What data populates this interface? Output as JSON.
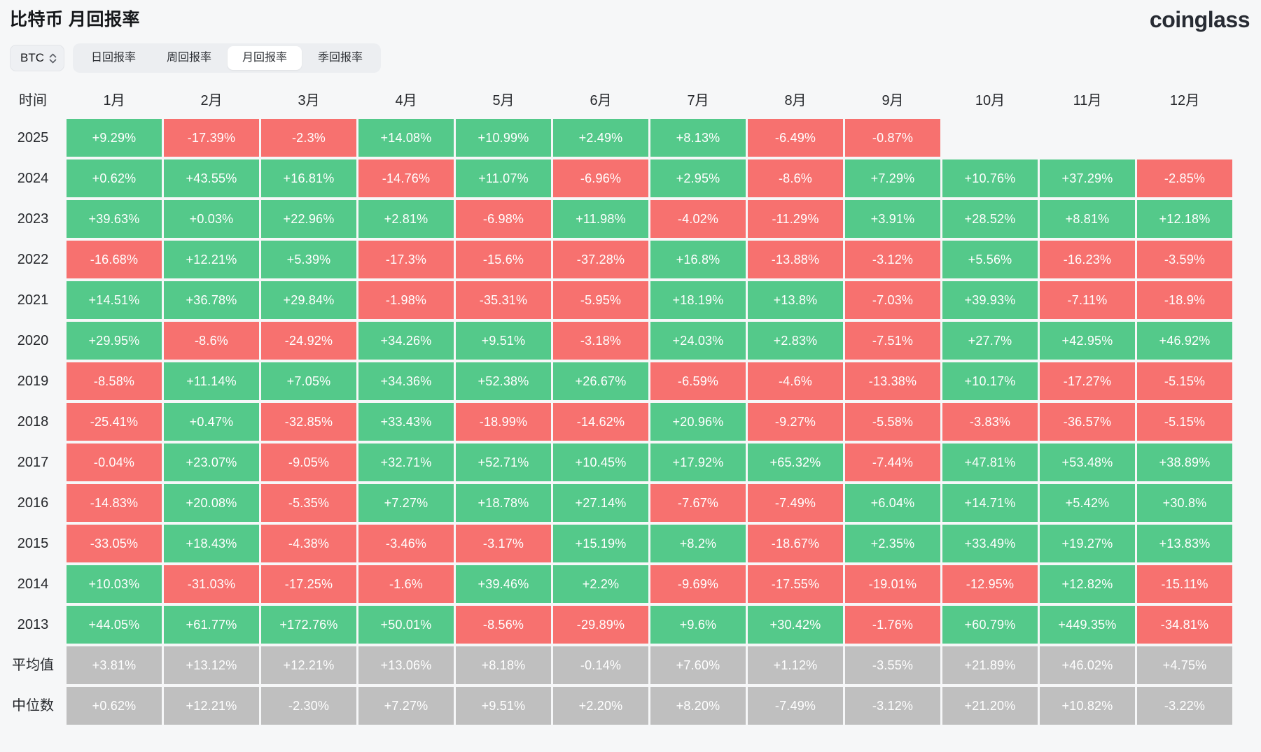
{
  "page": {
    "title": "比特币 月回报率",
    "brand": "coinglass"
  },
  "controls": {
    "coin_selector": {
      "value": "BTC"
    },
    "tabs": [
      {
        "label": "日回报率",
        "active": false
      },
      {
        "label": "周回报率",
        "active": false
      },
      {
        "label": "月回报率",
        "active": true
      },
      {
        "label": "季回报率",
        "active": false
      }
    ]
  },
  "colors": {
    "positive": "#54c98a",
    "negative": "#f7716f",
    "summary": "#bfbfbf",
    "background": "#f6f7f8",
    "tabbar": "#eceef1",
    "active_tab": "#ffffff"
  },
  "chart_data": {
    "type": "heatmap",
    "title": "比特币 月回报率",
    "corner_label": "时间",
    "columns": [
      "1月",
      "2月",
      "3月",
      "4月",
      "5月",
      "6月",
      "7月",
      "8月",
      "9月",
      "10月",
      "11月",
      "12月"
    ],
    "cell_color_rule": "positive values green, negative values red, summary rows gray, blank cells empty",
    "rows": [
      {
        "label": "2025",
        "type": "year",
        "values": [
          "+9.29%",
          "-17.39%",
          "-2.3%",
          "+14.08%",
          "+10.99%",
          "+2.49%",
          "+8.13%",
          "-6.49%",
          "-0.87%",
          "",
          "",
          ""
        ]
      },
      {
        "label": "2024",
        "type": "year",
        "values": [
          "+0.62%",
          "+43.55%",
          "+16.81%",
          "-14.76%",
          "+11.07%",
          "-6.96%",
          "+2.95%",
          "-8.6%",
          "+7.29%",
          "+10.76%",
          "+37.29%",
          "-2.85%"
        ]
      },
      {
        "label": "2023",
        "type": "year",
        "values": [
          "+39.63%",
          "+0.03%",
          "+22.96%",
          "+2.81%",
          "-6.98%",
          "+11.98%",
          "-4.02%",
          "-11.29%",
          "+3.91%",
          "+28.52%",
          "+8.81%",
          "+12.18%"
        ]
      },
      {
        "label": "2022",
        "type": "year",
        "values": [
          "-16.68%",
          "+12.21%",
          "+5.39%",
          "-17.3%",
          "-15.6%",
          "-37.28%",
          "+16.8%",
          "-13.88%",
          "-3.12%",
          "+5.56%",
          "-16.23%",
          "-3.59%"
        ]
      },
      {
        "label": "2021",
        "type": "year",
        "values": [
          "+14.51%",
          "+36.78%",
          "+29.84%",
          "-1.98%",
          "-35.31%",
          "-5.95%",
          "+18.19%",
          "+13.8%",
          "-7.03%",
          "+39.93%",
          "-7.11%",
          "-18.9%"
        ]
      },
      {
        "label": "2020",
        "type": "year",
        "values": [
          "+29.95%",
          "-8.6%",
          "-24.92%",
          "+34.26%",
          "+9.51%",
          "-3.18%",
          "+24.03%",
          "+2.83%",
          "-7.51%",
          "+27.7%",
          "+42.95%",
          "+46.92%"
        ]
      },
      {
        "label": "2019",
        "type": "year",
        "values": [
          "-8.58%",
          "+11.14%",
          "+7.05%",
          "+34.36%",
          "+52.38%",
          "+26.67%",
          "-6.59%",
          "-4.6%",
          "-13.38%",
          "+10.17%",
          "-17.27%",
          "-5.15%"
        ]
      },
      {
        "label": "2018",
        "type": "year",
        "values": [
          "-25.41%",
          "+0.47%",
          "-32.85%",
          "+33.43%",
          "-18.99%",
          "-14.62%",
          "+20.96%",
          "-9.27%",
          "-5.58%",
          "-3.83%",
          "-36.57%",
          "-5.15%"
        ]
      },
      {
        "label": "2017",
        "type": "year",
        "values": [
          "-0.04%",
          "+23.07%",
          "-9.05%",
          "+32.71%",
          "+52.71%",
          "+10.45%",
          "+17.92%",
          "+65.32%",
          "-7.44%",
          "+47.81%",
          "+53.48%",
          "+38.89%"
        ]
      },
      {
        "label": "2016",
        "type": "year",
        "values": [
          "-14.83%",
          "+20.08%",
          "-5.35%",
          "+7.27%",
          "+18.78%",
          "+27.14%",
          "-7.67%",
          "-7.49%",
          "+6.04%",
          "+14.71%",
          "+5.42%",
          "+30.8%"
        ]
      },
      {
        "label": "2015",
        "type": "year",
        "values": [
          "-33.05%",
          "+18.43%",
          "-4.38%",
          "-3.46%",
          "-3.17%",
          "+15.19%",
          "+8.2%",
          "-18.67%",
          "+2.35%",
          "+33.49%",
          "+19.27%",
          "+13.83%"
        ]
      },
      {
        "label": "2014",
        "type": "year",
        "values": [
          "+10.03%",
          "-31.03%",
          "-17.25%",
          "-1.6%",
          "+39.46%",
          "+2.2%",
          "-9.69%",
          "-17.55%",
          "-19.01%",
          "-12.95%",
          "+12.82%",
          "-15.11%"
        ]
      },
      {
        "label": "2013",
        "type": "year",
        "values": [
          "+44.05%",
          "+61.77%",
          "+172.76%",
          "+50.01%",
          "-8.56%",
          "-29.89%",
          "+9.6%",
          "+30.42%",
          "-1.76%",
          "+60.79%",
          "+449.35%",
          "-34.81%"
        ]
      },
      {
        "label": "平均值",
        "type": "summary",
        "values": [
          "+3.81%",
          "+13.12%",
          "+12.21%",
          "+13.06%",
          "+8.18%",
          "-0.14%",
          "+7.60%",
          "+1.12%",
          "-3.55%",
          "+21.89%",
          "+46.02%",
          "+4.75%"
        ]
      },
      {
        "label": "中位数",
        "type": "summary",
        "values": [
          "+0.62%",
          "+12.21%",
          "-2.30%",
          "+7.27%",
          "+9.51%",
          "+2.20%",
          "+8.20%",
          "-7.49%",
          "-3.12%",
          "+21.20%",
          "+10.82%",
          "-3.22%"
        ]
      }
    ]
  }
}
